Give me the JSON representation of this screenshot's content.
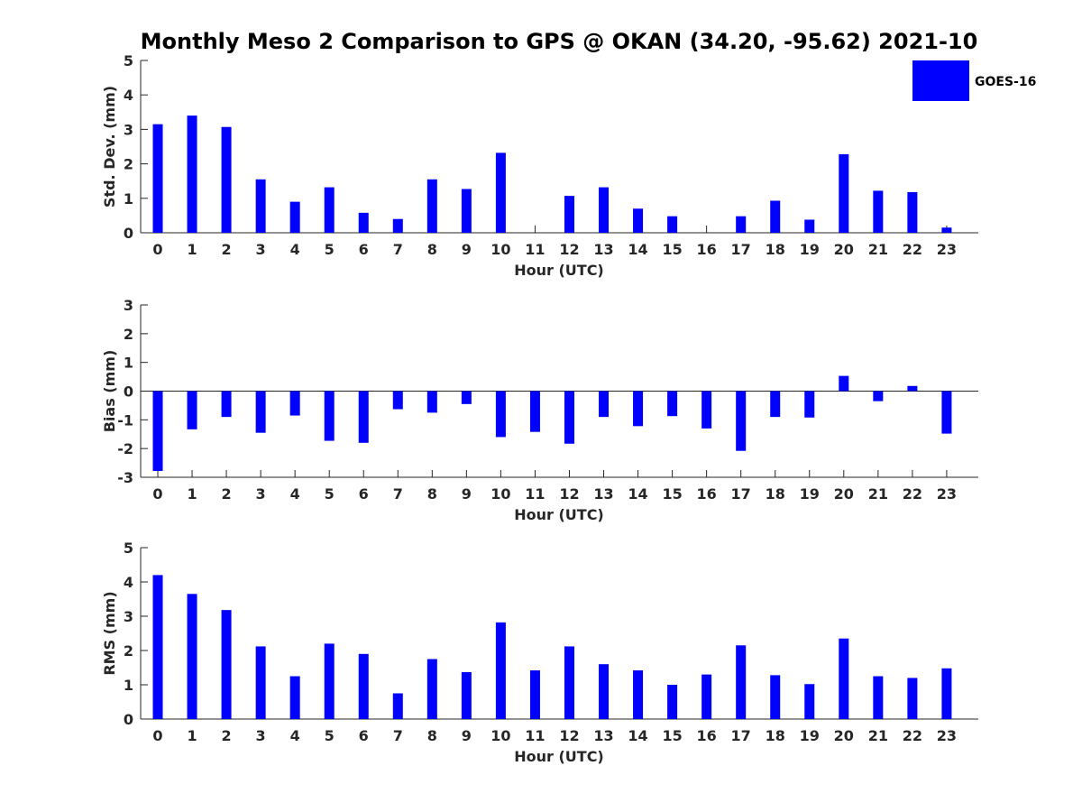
{
  "chart_data": {
    "title": "Monthly Meso 2 Comparison to GPS @ OKAN (34.20, -95.62) 2021-10",
    "legend": {
      "label": "GOES-16",
      "color": "#0000ff",
      "position": "top-right"
    },
    "charts": [
      {
        "type": "bar",
        "xlabel": "Hour (UTC)",
        "ylabel": "Std. Dev. (mm)",
        "ylim": [
          0,
          5
        ],
        "yticks": [
          "0",
          "1",
          "2",
          "3",
          "4",
          "5"
        ],
        "categories": [
          "0",
          "1",
          "2",
          "3",
          "4",
          "5",
          "6",
          "7",
          "8",
          "9",
          "10",
          "11",
          "12",
          "13",
          "14",
          "15",
          "16",
          "17",
          "18",
          "19",
          "20",
          "21",
          "22",
          "23"
        ],
        "values": [
          3.15,
          3.4,
          3.07,
          1.55,
          0.9,
          1.32,
          0.58,
          0.4,
          1.55,
          1.27,
          2.32,
          0,
          1.07,
          1.32,
          0.7,
          0.48,
          0,
          0.48,
          0.93,
          0.38,
          2.28,
          1.22,
          1.18,
          0.15
        ],
        "color": "#0000ff"
      },
      {
        "type": "bar",
        "xlabel": "Hour (UTC)",
        "ylabel": "Bias (mm)",
        "ylim": [
          -3,
          3
        ],
        "yticks": [
          "-3",
          "-2",
          "-1",
          "0",
          "1",
          "2",
          "3"
        ],
        "categories": [
          "0",
          "1",
          "2",
          "3",
          "4",
          "5",
          "6",
          "7",
          "8",
          "9",
          "10",
          "11",
          "12",
          "13",
          "14",
          "15",
          "16",
          "17",
          "18",
          "19",
          "20",
          "21",
          "22",
          "23"
        ],
        "values": [
          -2.78,
          -1.33,
          -0.9,
          -1.45,
          -0.85,
          -1.73,
          -1.8,
          -0.63,
          -0.75,
          -0.45,
          -1.6,
          -1.42,
          -1.83,
          -0.9,
          -1.22,
          -0.87,
          -1.3,
          -2.08,
          -0.9,
          -0.92,
          0.53,
          -0.35,
          0.18,
          -1.48
        ],
        "color": "#0000ff"
      },
      {
        "type": "bar",
        "xlabel": "Hour (UTC)",
        "ylabel": "RMS (mm)",
        "ylim": [
          0,
          5
        ],
        "yticks": [
          "0",
          "1",
          "2",
          "3",
          "4",
          "5"
        ],
        "categories": [
          "0",
          "1",
          "2",
          "3",
          "4",
          "5",
          "6",
          "7",
          "8",
          "9",
          "10",
          "11",
          "12",
          "13",
          "14",
          "15",
          "16",
          "17",
          "18",
          "19",
          "20",
          "21",
          "22",
          "23"
        ],
        "values": [
          4.2,
          3.65,
          3.18,
          2.12,
          1.25,
          2.2,
          1.9,
          0.75,
          1.75,
          1.37,
          2.82,
          1.42,
          2.12,
          1.6,
          1.42,
          1.0,
          1.3,
          2.15,
          1.28,
          1.02,
          2.35,
          1.25,
          1.2,
          1.48
        ],
        "color": "#0000ff"
      }
    ]
  }
}
